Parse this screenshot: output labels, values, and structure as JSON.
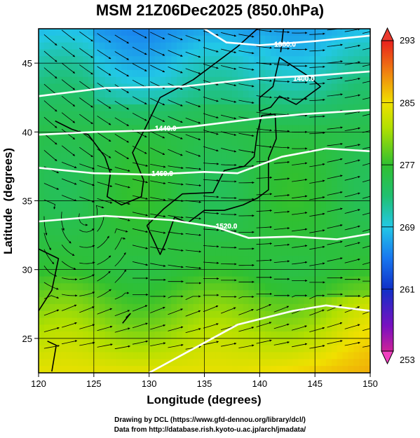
{
  "title": "MSM 21Z06Dec2025 (850.0hPa)",
  "xaxis": {
    "label": "Longitude (degrees)",
    "ticks": [
      "120",
      "125",
      "130",
      "135",
      "140",
      "145",
      "150"
    ]
  },
  "yaxis": {
    "label": "Latitude  (degrees)",
    "ticks": [
      "25",
      "30",
      "35",
      "40",
      "45"
    ]
  },
  "colorbar": {
    "ticks": [
      "293",
      "285",
      "277",
      "269",
      "261",
      "253"
    ],
    "min": 253,
    "max": 293
  },
  "contour_labels": [
    "1380.0",
    "1400.0",
    "1440.0",
    "1460.0",
    "1520.0"
  ],
  "credit": {
    "line1": "Drawing by DCL (https://www.gfd-dennou.org/library/dcl/)",
    "line2": "Data from http://database.rish.kyoto-u.ac.jp/arch/jmadata/"
  },
  "chart_data": {
    "type": "heatmap",
    "title": "MSM 21Z06Dec2025 (850.0hPa)",
    "xlabel": "Longitude (degrees)",
    "ylabel": "Latitude  (degrees)",
    "xlim": [
      120,
      150
    ],
    "ylim": [
      22.5,
      47.5
    ],
    "color_range": [
      253,
      293
    ],
    "overlays": [
      "streamlines",
      "geopotential height contours (white)",
      "coastlines",
      "grid"
    ],
    "contours": [
      {
        "label": "1380.0",
        "lon": 142.3,
        "lat": 46.2
      },
      {
        "label": "1400.0",
        "lon": 144.0,
        "lat": 43.7
      },
      {
        "label": "1440.0",
        "lon": 131.5,
        "lat": 40.1
      },
      {
        "label": "1460.0",
        "lon": 131.2,
        "lat": 36.8
      },
      {
        "label": "1520.0",
        "lon": 137.0,
        "lat": 33.0
      }
    ]
  }
}
